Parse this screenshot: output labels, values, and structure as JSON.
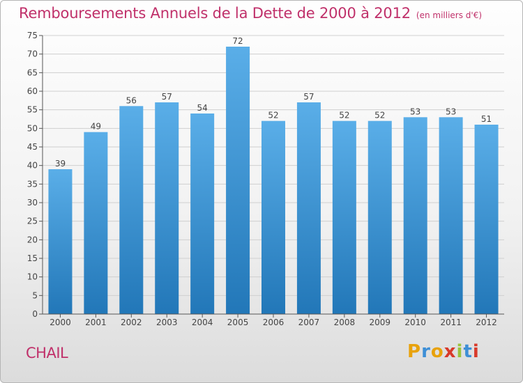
{
  "title": "Remboursements Annuels de la Dette de 2000 à 2012",
  "unit": "(en milliers d'€)",
  "commune": "CHAIL",
  "brand": {
    "letters": [
      "P",
      "r",
      "o",
      "x",
      "i",
      "t",
      "i"
    ],
    "colors": [
      "#e8a20c",
      "#3e8fd6",
      "#e8a20c",
      "#d83a2a",
      "#9bc33b",
      "#3e8fd6",
      "#d83a2a"
    ]
  },
  "colors": {
    "accent": "#c0306a",
    "bar_top": "#5aaee8",
    "bar_bottom": "#2277b8",
    "grid": "#cfcfcf"
  },
  "chart_data": {
    "type": "bar",
    "categories": [
      "2000",
      "2001",
      "2002",
      "2003",
      "2004",
      "2005",
      "2006",
      "2007",
      "2008",
      "2009",
      "2010",
      "2011",
      "2012"
    ],
    "values": [
      39,
      49,
      56,
      57,
      54,
      72,
      52,
      57,
      52,
      52,
      53,
      53,
      51
    ],
    "ylim": [
      0,
      75
    ],
    "yticks": [
      0,
      5,
      10,
      15,
      20,
      25,
      30,
      35,
      40,
      45,
      50,
      55,
      60,
      65,
      70,
      75
    ],
    "grid": true,
    "data_labels": true
  }
}
